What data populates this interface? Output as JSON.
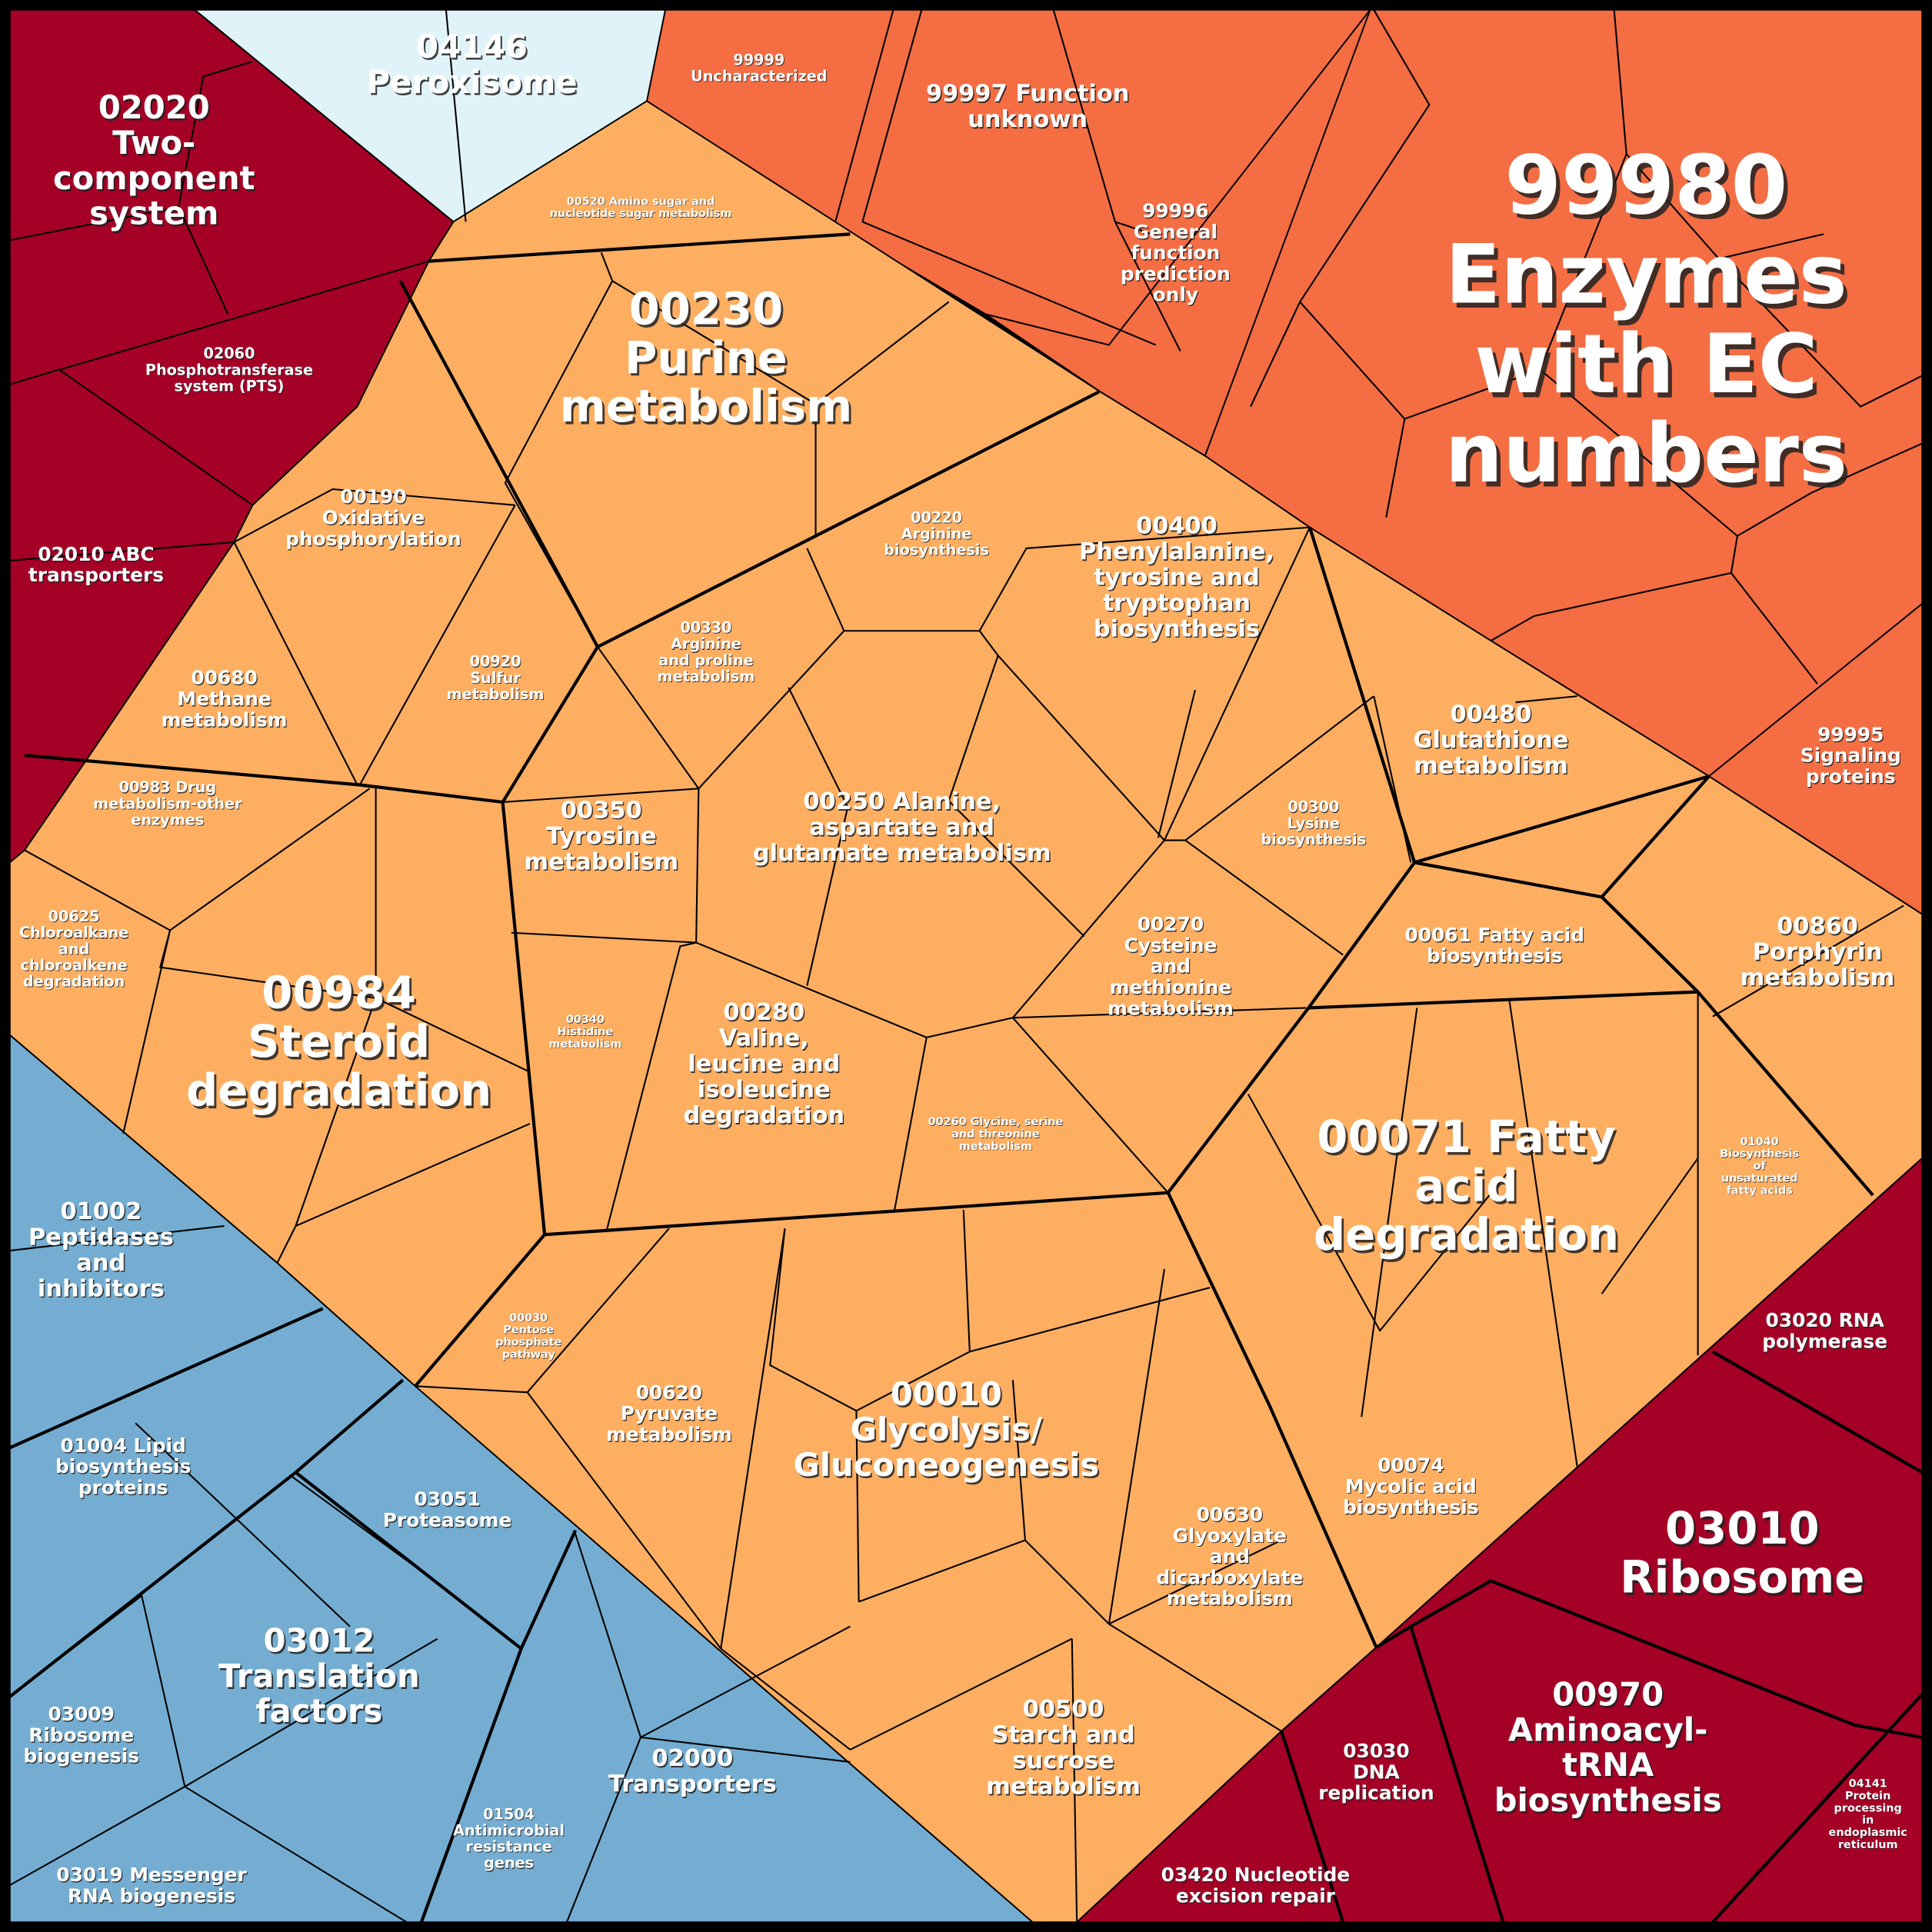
{
  "title": "KEGG pathway Voronoi treemap",
  "colors": {
    "border": "#000000",
    "peroxisome": "#e0f3f8",
    "unknown_group": "#f46d43",
    "metabolism": "#fdae61",
    "genetic_info": "#a50026",
    "transport": "#74add1"
  },
  "cells": [
    {
      "id": "04146",
      "lines": [
        "04146",
        "Peroxisome"
      ],
      "size": "l"
    },
    {
      "id": "02020",
      "lines": [
        "02020",
        "Two-",
        "component",
        "system"
      ],
      "size": "l"
    },
    {
      "id": "02060",
      "lines": [
        "02060",
        "Phosphotransferase",
        "system (PTS)"
      ],
      "size": "xs"
    },
    {
      "id": "02010",
      "lines": [
        "02010 ABC",
        "transporters"
      ],
      "size": "s"
    },
    {
      "id": "99999",
      "lines": [
        "99999",
        "Uncharacterized"
      ],
      "size": "xs"
    },
    {
      "id": "99997",
      "lines": [
        "99997 Function",
        "unknown"
      ],
      "size": "m"
    },
    {
      "id": "99996",
      "lines": [
        "99996",
        "General",
        "function",
        "prediction",
        "only"
      ],
      "size": "s"
    },
    {
      "id": "99980",
      "lines": [
        "99980",
        "Enzymes",
        "with EC",
        "numbers"
      ],
      "size": "xxl"
    },
    {
      "id": "99995",
      "lines": [
        "99995",
        "Signaling",
        "proteins"
      ],
      "size": "s"
    },
    {
      "id": "00520",
      "lines": [
        "00520 Amino sugar and",
        "nucleotide sugar metabolism"
      ],
      "size": "xxs"
    },
    {
      "id": "00230",
      "lines": [
        "00230",
        "Purine",
        "metabolism"
      ],
      "size": "xl"
    },
    {
      "id": "00190",
      "lines": [
        "00190",
        "Oxidative",
        "phosphorylation"
      ],
      "size": "s"
    },
    {
      "id": "00680",
      "lines": [
        "00680",
        "Methane",
        "metabolism"
      ],
      "size": "s"
    },
    {
      "id": "00920",
      "lines": [
        "00920",
        "Sulfur",
        "metabolism"
      ],
      "size": "xs"
    },
    {
      "id": "00220",
      "lines": [
        "00220",
        "Arginine",
        "biosynthesis"
      ],
      "size": "xs"
    },
    {
      "id": "00330",
      "lines": [
        "00330",
        "Arginine",
        "and proline",
        "metabolism"
      ],
      "size": "xs"
    },
    {
      "id": "00400",
      "lines": [
        "00400",
        "Phenylalanine,",
        "tyrosine and",
        "tryptophan",
        "biosynthesis"
      ],
      "size": "m"
    },
    {
      "id": "00480",
      "lines": [
        "00480",
        "Glutathione",
        "metabolism"
      ],
      "size": "m"
    },
    {
      "id": "00300",
      "lines": [
        "00300",
        "Lysine",
        "biosynthesis"
      ],
      "size": "xs"
    },
    {
      "id": "00250",
      "lines": [
        "00250 Alanine,",
        "aspartate and",
        "glutamate metabolism"
      ],
      "size": "m"
    },
    {
      "id": "00350",
      "lines": [
        "00350",
        "Tyrosine",
        "metabolism"
      ],
      "size": "m"
    },
    {
      "id": "00983",
      "lines": [
        "00983 Drug",
        "metabolism-other",
        "enzymes"
      ],
      "size": "xs"
    },
    {
      "id": "00625",
      "lines": [
        "00625",
        "Chloroalkane",
        "and",
        "chloroalkene",
        "degradation"
      ],
      "size": "xs"
    },
    {
      "id": "00984",
      "lines": [
        "00984",
        "Steroid",
        "degradation"
      ],
      "size": "xl"
    },
    {
      "id": "00340",
      "lines": [
        "00340",
        "Histidine",
        "metabolism"
      ],
      "size": "xxs"
    },
    {
      "id": "00280",
      "lines": [
        "00280",
        "Valine,",
        "leucine and",
        "isoleucine",
        "degradation"
      ],
      "size": "m"
    },
    {
      "id": "00260",
      "lines": [
        "00260 Glycine, serine",
        "and threonine",
        "metabolism"
      ],
      "size": "xxs"
    },
    {
      "id": "00270",
      "lines": [
        "00270",
        "Cysteine",
        "and",
        "methionine",
        "metabolism"
      ],
      "size": "s"
    },
    {
      "id": "00061",
      "lines": [
        "00061 Fatty acid",
        "biosynthesis"
      ],
      "size": "s"
    },
    {
      "id": "00860",
      "lines": [
        "00860",
        "Porphyrin",
        "metabolism"
      ],
      "size": "m"
    },
    {
      "id": "00071",
      "lines": [
        "00071 Fatty",
        "acid",
        "degradation"
      ],
      "size": "xl"
    },
    {
      "id": "01040",
      "lines": [
        "01040",
        "Biosynthesis",
        "of",
        "unsaturated",
        "fatty acids"
      ],
      "size": "xxs"
    },
    {
      "id": "00030",
      "lines": [
        "00030",
        "Pentose",
        "phosphate",
        "pathway"
      ],
      "size": "xxs"
    },
    {
      "id": "00620",
      "lines": [
        "00620",
        "Pyruvate",
        "metabolism"
      ],
      "size": "s"
    },
    {
      "id": "00010",
      "lines": [
        "00010",
        "Glycolysis/",
        "Gluconeogenesis"
      ],
      "size": "l"
    },
    {
      "id": "00074",
      "lines": [
        "00074",
        "Mycolic acid",
        "biosynthesis"
      ],
      "size": "s"
    },
    {
      "id": "00630",
      "lines": [
        "00630",
        "Glyoxylate",
        "and",
        "dicarboxylate",
        "metabolism"
      ],
      "size": "s"
    },
    {
      "id": "00500",
      "lines": [
        "00500",
        "Starch and",
        "sucrose",
        "metabolism"
      ],
      "size": "m"
    },
    {
      "id": "03020",
      "lines": [
        "03020 RNA",
        "polymerase"
      ],
      "size": "s"
    },
    {
      "id": "03010",
      "lines": [
        "03010",
        "Ribosome"
      ],
      "size": "xl"
    },
    {
      "id": "00970",
      "lines": [
        "00970",
        "Aminoacyl-",
        "tRNA",
        "biosynthesis"
      ],
      "size": "l"
    },
    {
      "id": "03030",
      "lines": [
        "03030",
        "DNA",
        "replication"
      ],
      "size": "s"
    },
    {
      "id": "03420",
      "lines": [
        "03420 Nucleotide",
        "excision repair"
      ],
      "size": "s"
    },
    {
      "id": "04141",
      "lines": [
        "04141",
        "Protein",
        "processing",
        "in",
        "endoplasmic",
        "reticulum"
      ],
      "size": "xxs"
    },
    {
      "id": "01002",
      "lines": [
        "01002",
        "Peptidases",
        "and",
        "inhibitors"
      ],
      "size": "m"
    },
    {
      "id": "01004",
      "lines": [
        "01004 Lipid",
        "biosynthesis",
        "proteins"
      ],
      "size": "s"
    },
    {
      "id": "03051",
      "lines": [
        "03051",
        "Proteasome"
      ],
      "size": "s"
    },
    {
      "id": "03012",
      "lines": [
        "03012",
        "Translation",
        "factors"
      ],
      "size": "l"
    },
    {
      "id": "03009",
      "lines": [
        "03009",
        "Ribosome",
        "biogenesis"
      ],
      "size": "s"
    },
    {
      "id": "03019",
      "lines": [
        "03019 Messenger",
        "RNA biogenesis"
      ],
      "size": "s"
    },
    {
      "id": "01504",
      "lines": [
        "01504",
        "Antimicrobial",
        "resistance",
        "genes"
      ],
      "size": "xs"
    },
    {
      "id": "02000",
      "lines": [
        "02000",
        "Transporters"
      ],
      "size": "m"
    }
  ]
}
